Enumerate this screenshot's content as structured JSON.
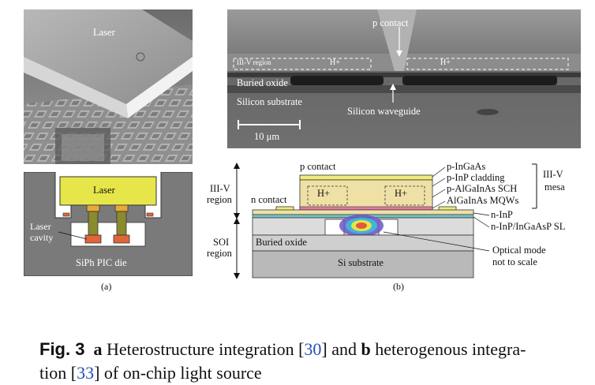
{
  "figure": {
    "panel_a": {
      "sem_label": "Laser",
      "schematic": {
        "laser": "Laser",
        "laser_cavity_line1": "Laser",
        "laser_cavity_line2": "cavity",
        "die": "SiPh PIC die"
      },
      "sublabel": "(a)"
    },
    "panel_b": {
      "sem": {
        "p_contact": "p contact",
        "iiiv_region": "III-V region",
        "h_plus_left": "H+",
        "h_plus_right": "H+",
        "buried_oxide": "Buried oxide",
        "silicon_substrate": "Silicon substrate",
        "silicon_waveguide": "Silicon waveguide",
        "scale_bar": "10 μm"
      },
      "schematic": {
        "p_contact": "p contact",
        "n_contact": "n contact",
        "iiiv_region_line1": "III-V",
        "iiiv_region_line2": "region",
        "soi_region_line1": "SOI",
        "soi_region_line2": "region",
        "h_plus_left": "H+",
        "h_plus_right": "H+",
        "buried_oxide": "Buried oxide",
        "si_substrate": "Si substrate",
        "layers": [
          "p-InGaAs",
          "p-InP cladding",
          "p-AlGaInAs SCH",
          "AlGaInAs MQWs",
          "n-InP",
          "n-InP/InGaAsP SL"
        ],
        "mesa_line1": "III-V",
        "mesa_line2": "mesa",
        "optical_mode_line1": "Optical mode",
        "optical_mode_line2": "not to scale"
      },
      "sublabel": "(b)"
    }
  },
  "caption": {
    "fig_label": "Fig. 3",
    "part_a": "a",
    "text_1": " Heterostructure integration [",
    "ref_1": "30",
    "text_2": "] and ",
    "part_b": "b",
    "text_3": " heterogenous integra-",
    "text_4": "tion [",
    "ref_2": "33",
    "text_5": "] of on-chip light source"
  },
  "colors": {
    "laser_yellow": "#e6e64a",
    "pad_orange": "#e8a83a",
    "cavity_red": "#e0663a",
    "post_olive": "#8a8a2e",
    "die_gray": "#7a7a7a",
    "mesa_tan": "#efe1a6",
    "contact_yellow": "#f1ec7a",
    "layer_pink": "#e67aa6",
    "layer_teal": "#76c2c8"
  }
}
